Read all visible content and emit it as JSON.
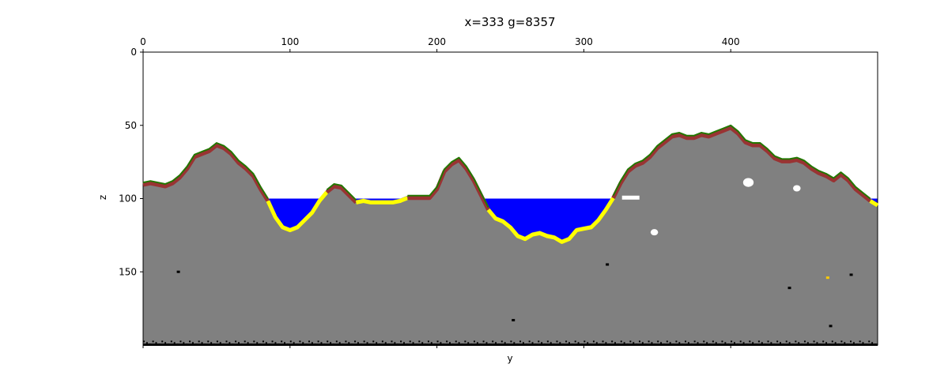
{
  "chart_data": {
    "type": "heatmap",
    "title": "x=333 g=8357",
    "xlabel": "y",
    "ylabel": "z",
    "xlim": [
      0,
      500
    ],
    "ylim": [
      200,
      0
    ],
    "xticks": [
      0,
      100,
      200,
      300,
      400
    ],
    "yticks": [
      0,
      50,
      100,
      150
    ],
    "x_tick_position": "top",
    "grid": false,
    "legend": "none",
    "water_level_z": 100,
    "colors": {
      "air": "#ffffff",
      "stone": "#808080",
      "dirt": "#993333",
      "grass": "#227700",
      "sand": "#ffff00",
      "water": "#0000ff",
      "bedrock": "#000000",
      "cave": "#ffffff",
      "ore_dark": "#000000",
      "ore_gold": "#ffcc00"
    },
    "surface_profile": {
      "y": [
        0,
        5,
        10,
        15,
        20,
        25,
        30,
        35,
        40,
        45,
        50,
        55,
        60,
        65,
        70,
        75,
        80,
        85,
        90,
        95,
        100,
        105,
        110,
        115,
        120,
        125,
        130,
        135,
        140,
        145,
        150,
        155,
        160,
        165,
        170,
        175,
        180,
        185,
        190,
        195,
        200,
        205,
        210,
        215,
        220,
        225,
        230,
        235,
        240,
        245,
        250,
        255,
        260,
        265,
        270,
        275,
        280,
        285,
        290,
        295,
        300,
        305,
        310,
        315,
        320,
        325,
        330,
        335,
        340,
        345,
        350,
        355,
        360,
        365,
        370,
        375,
        380,
        385,
        390,
        395,
        400,
        405,
        410,
        415,
        420,
        425,
        430,
        435,
        440,
        445,
        450,
        455,
        460,
        465,
        470,
        475,
        480,
        485,
        490,
        495,
        500
      ],
      "z": [
        89,
        88,
        89,
        90,
        88,
        84,
        78,
        70,
        68,
        66,
        62,
        64,
        68,
        74,
        78,
        83,
        92,
        100,
        111,
        118,
        120,
        118,
        113,
        108,
        100,
        94,
        90,
        91,
        96,
        101,
        100,
        101,
        101,
        101,
        101,
        100,
        98,
        98,
        98,
        98,
        92,
        80,
        75,
        72,
        78,
        86,
        96,
        106,
        112,
        114,
        118,
        124,
        126,
        123,
        122,
        124,
        125,
        128,
        126,
        120,
        119,
        118,
        113,
        106,
        98,
        88,
        80,
        76,
        74,
        70,
        64,
        60,
        56,
        55,
        57,
        57,
        55,
        56,
        54,
        52,
        50,
        54,
        60,
        62,
        62,
        66,
        71,
        73,
        73,
        72,
        74,
        78,
        81,
        83,
        86,
        82,
        86,
        92,
        96,
        100,
        103
      ]
    }
  }
}
